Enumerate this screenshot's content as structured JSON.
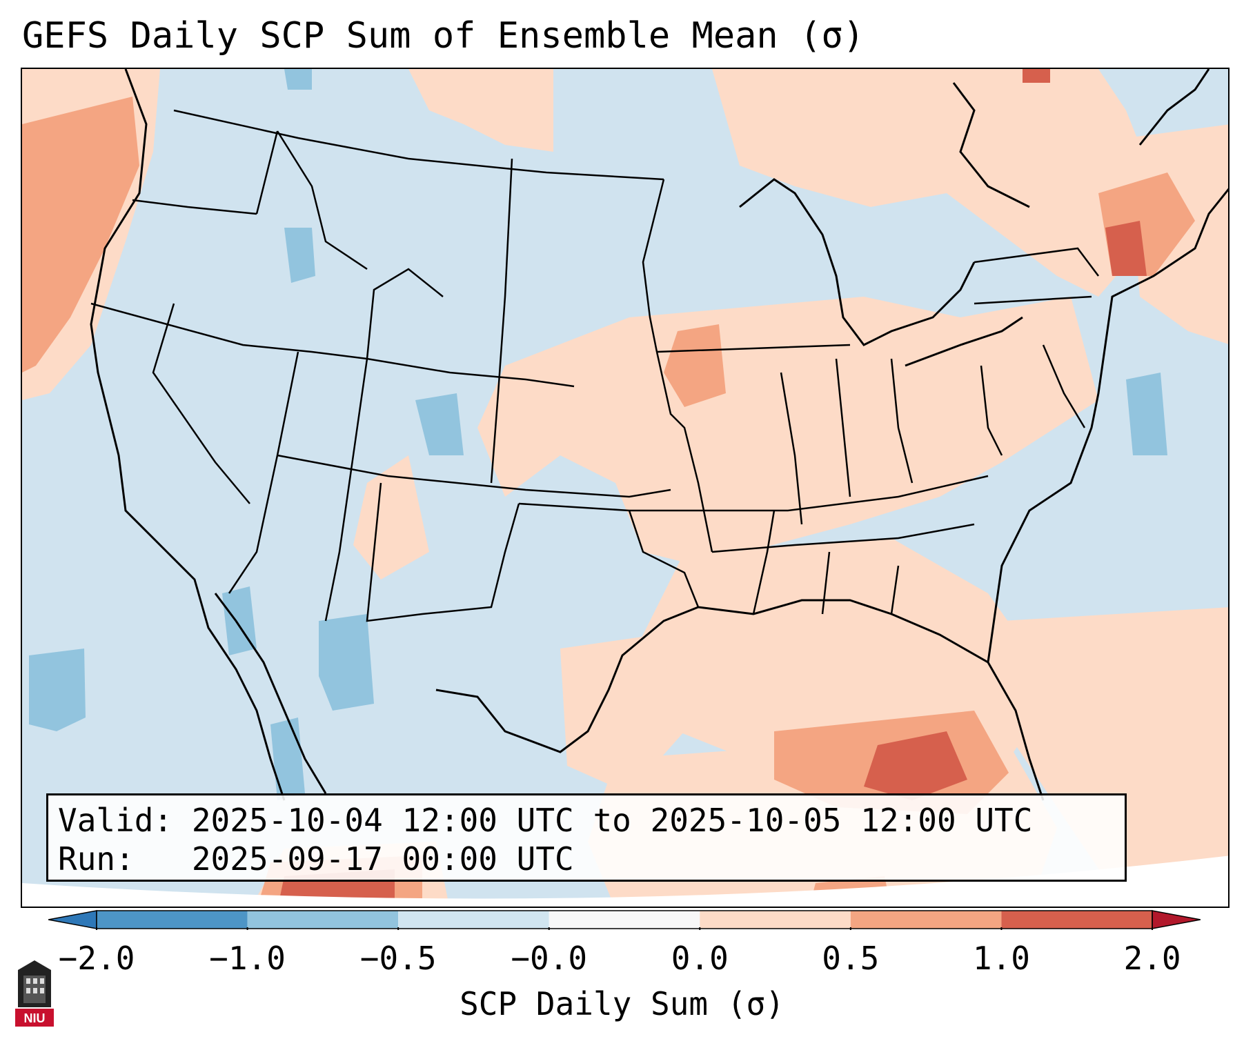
{
  "title": "GEFS Daily SCP Sum of Ensemble Mean (σ)",
  "info": {
    "valid": "Valid: 2025-10-04 12:00 UTC to 2025-10-05 12:00 UTC",
    "run": "Run:   2025-09-17 00:00 UTC"
  },
  "colorbar": {
    "label": "SCP Daily Sum (σ)",
    "ticks": [
      "−2.0",
      "−1.0",
      "−0.5",
      "−0.0",
      "0.0",
      "0.5",
      "1.0",
      "2.0"
    ],
    "colors": [
      "#2e78b8",
      "#4d95c6",
      "#92c4de",
      "#d1e5f0",
      "#f7f7f7",
      "#fddbc7",
      "#f4a582",
      "#d6604d",
      "#b2182b"
    ],
    "extend": "both"
  },
  "logo": {
    "text": "NIU"
  },
  "colors": {
    "background": "#d0e3ef",
    "positive_light": "#fddbc7",
    "positive_mid": "#f4a582",
    "positive_high": "#d6604d",
    "negative_light": "#92c4de",
    "coastline": "#000000"
  }
}
